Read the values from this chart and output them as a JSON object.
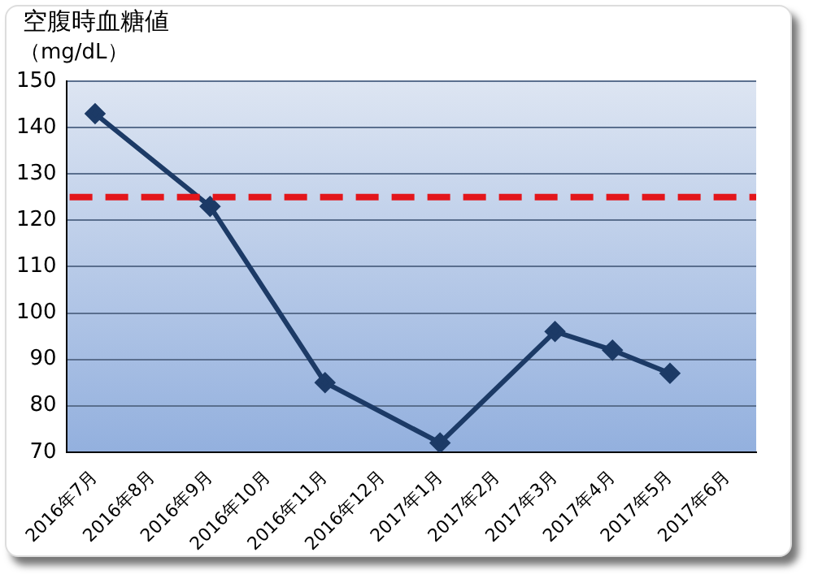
{
  "chart_data": {
    "type": "line",
    "title": "空腹時血糖値",
    "ylabel": "（mg/dL）",
    "categories": [
      "2016年7月",
      "2016年8月",
      "2016年9月",
      "2016年10月",
      "2016年11月",
      "2016年12月",
      "2017年1月",
      "2017年2月",
      "2017年3月",
      "2017年4月",
      "2017年5月",
      "2017年6月"
    ],
    "series": [
      {
        "color": "#1c3a66",
        "values": [
          143,
          null,
          123,
          null,
          85,
          null,
          72,
          null,
          96,
          92,
          87,
          null
        ]
      }
    ],
    "ylim": [
      70,
      150
    ],
    "yticks": [
      70,
      80,
      90,
      100,
      110,
      120,
      130,
      140,
      150
    ],
    "grid": "y",
    "legend": false,
    "marker": "diamond",
    "line_style": "solid",
    "ref_lines": [
      {
        "axis": "y",
        "value": 125,
        "color": "#e3161b",
        "line_style": "dashed"
      }
    ]
  }
}
